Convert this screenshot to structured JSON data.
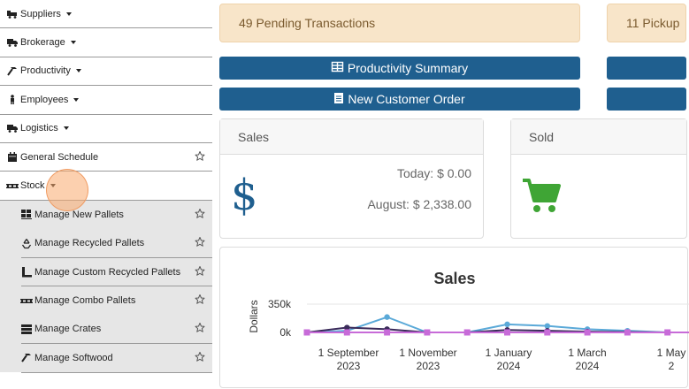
{
  "sidebar": {
    "items": [
      {
        "label": "Suppliers",
        "icon": "truck-loading-icon",
        "caret": true,
        "star": false
      },
      {
        "label": "Brokerage",
        "icon": "truck-icon",
        "caret": true,
        "star": false
      },
      {
        "label": "Productivity",
        "icon": "hammer-icon",
        "caret": true,
        "star": false
      },
      {
        "label": "Employees",
        "icon": "person-icon",
        "caret": true,
        "star": false
      },
      {
        "label": "Logistics",
        "icon": "truck-icon",
        "caret": true,
        "star": false
      },
      {
        "label": "General Schedule",
        "icon": "calendar-icon",
        "caret": false,
        "star": true
      },
      {
        "label": "Stock",
        "icon": "pallet-icon",
        "caret": true,
        "star": false
      }
    ],
    "sub_items": [
      {
        "label": "Manage New Pallets",
        "icon": "pallet-boxes-icon"
      },
      {
        "label": "Manage Recycled Pallets",
        "icon": "recycle-icon"
      },
      {
        "label": "Manage Custom Recycled Pallets",
        "icon": "pallet-custom-icon"
      },
      {
        "label": "Manage Combo Pallets",
        "icon": "pallet-icon"
      },
      {
        "label": "Manage Crates",
        "icon": "crate-icon"
      },
      {
        "label": "Manage Softwood",
        "icon": "hammer-icon"
      }
    ]
  },
  "alerts": {
    "pending": "49 Pending Transactions",
    "pickup": "11 Pickup"
  },
  "buttons": {
    "productivity_summary": "Productivity Summary",
    "new_customer_order": "New Customer Order"
  },
  "cards": {
    "sales": {
      "title": "Sales",
      "today": "Today: $ 0.00",
      "month": "August: $ 2,338.00"
    },
    "sold": {
      "title": "Sold"
    }
  },
  "colors": {
    "brand_blue": "#1f5f8f",
    "alert_bg": "#f8e5c9",
    "cart_green": "#3fa535"
  },
  "chart_data": {
    "type": "line",
    "title": "Sales",
    "ylabel": "Dollars",
    "y_ticks": [
      "350k",
      "0k"
    ],
    "ylim": [
      0,
      350000
    ],
    "x_ticks": [
      "1 September 2023",
      "1 November 2023",
      "1 January 2024",
      "1 March 2024",
      "1 May 2"
    ],
    "x": [
      "2023-08-01",
      "2023-09-01",
      "2023-10-01",
      "2023-11-01",
      "2023-12-01",
      "2024-01-01",
      "2024-02-01",
      "2024-03-01",
      "2024-04-01",
      "2024-05-01",
      "2024-06-01"
    ],
    "series": [
      {
        "color": "#5aa9d8",
        "values": [
          0,
          20000,
          190000,
          0,
          0,
          100000,
          80000,
          40000,
          20000,
          0,
          0
        ]
      },
      {
        "color": "#3a2a5a",
        "values": [
          0,
          60000,
          40000,
          0,
          0,
          30000,
          20000,
          10000,
          5000,
          0,
          0
        ]
      },
      {
        "color": "#c76bd8",
        "values": [
          0,
          0,
          0,
          0,
          0,
          0,
          0,
          0,
          0,
          0,
          0
        ]
      }
    ]
  }
}
